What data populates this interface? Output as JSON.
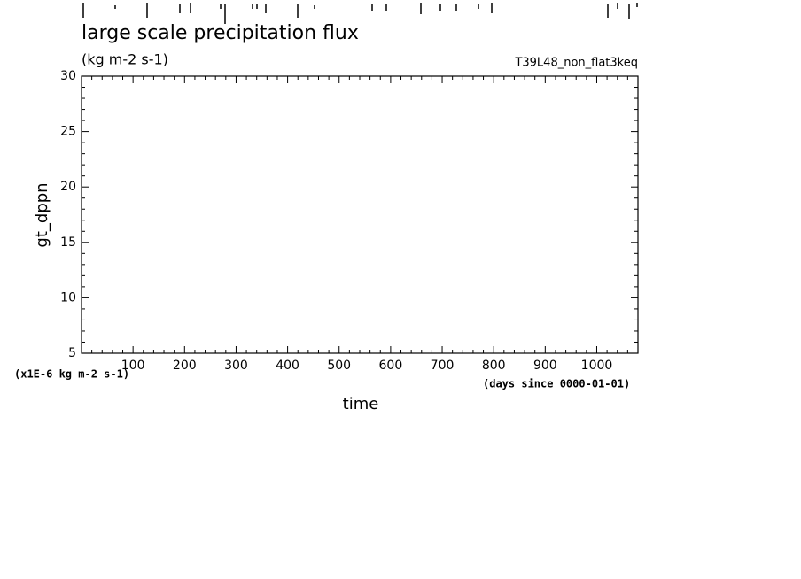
{
  "chart_data": {
    "type": "line",
    "title": "large scale precipitation flux",
    "subtitle": "(kg m-2 s-1)",
    "experiment": "T39L48_non_flat3keq",
    "xlabel": "time",
    "ylabel": "gt_dppn",
    "x_unit_note": "(days since 0000-01-01)",
    "y_unit_note": "(x1E-6 kg m-2 s-1)",
    "series": [],
    "xlim": [
      0,
      1080
    ],
    "ylim": [
      5,
      30
    ],
    "xticks": [
      100,
      200,
      300,
      400,
      500,
      600,
      700,
      800,
      900,
      1000
    ],
    "yticks": [
      5,
      10,
      15,
      20,
      25,
      30
    ],
    "xminorticks": [
      20,
      40,
      60,
      80,
      120,
      140,
      160,
      180,
      220,
      240,
      260,
      280,
      320,
      340,
      360,
      380,
      420,
      440,
      460,
      480,
      520,
      540,
      560,
      580,
      620,
      640,
      660,
      680,
      720,
      740,
      760,
      780,
      820,
      840,
      860,
      880,
      920,
      940,
      960,
      980,
      1020,
      1040,
      1060
    ],
    "yminorticks": [
      6,
      7,
      8,
      9,
      11,
      12,
      13,
      14,
      16,
      17,
      18,
      19,
      21,
      22,
      23,
      24,
      26,
      27,
      28,
      29
    ],
    "grid": false
  }
}
